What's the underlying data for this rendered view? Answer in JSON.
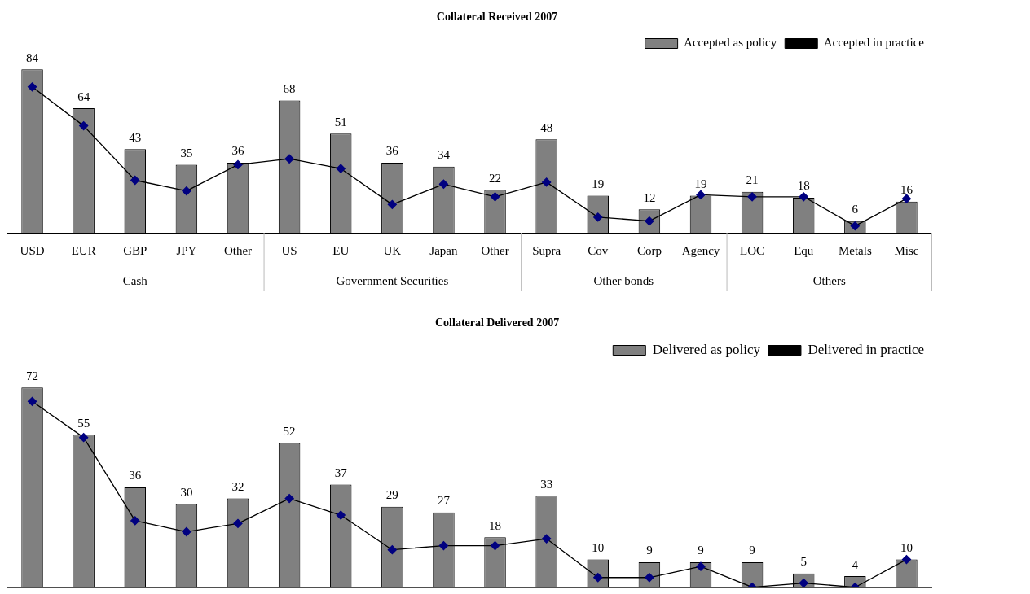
{
  "chart_data": [
    {
      "type": "bar",
      "title": "Collateral Received 2007",
      "categories": [
        "USD",
        "EUR",
        "GBP",
        "JPY",
        "Other",
        "US",
        "EU",
        "UK",
        "Japan",
        "Other",
        "Supra",
        "Cov",
        "Corp",
        "Agency",
        "LOC",
        "Equ",
        "Metals",
        "Misc"
      ],
      "series": [
        {
          "name": "Accepted as policy",
          "color": "#808080",
          "values": [
            84,
            64,
            43,
            35,
            36,
            68,
            51,
            36,
            34,
            22,
            48,
            19,
            12,
            19,
            21,
            18,
            6,
            16
          ],
          "value_labels": [
            "84",
            "64",
            "43",
            "35",
            "36",
            "68",
            "51",
            "36",
            "34",
            "22",
            "48",
            "19",
            "12",
            "19",
            "21",
            "18",
            "6",
            "16"
          ]
        },
        {
          "name": "Accepted in practice",
          "type": "line",
          "color": "#000080",
          "values": [
            75,
            55,
            27,
            21.5,
            35,
            38,
            33,
            14.5,
            25,
            18.5,
            26,
            8,
            6,
            19.5,
            18.5,
            18.5,
            3.5,
            17.5
          ]
        }
      ],
      "annotations": [
        "Cash",
        "Government Securities",
        "Other bonds",
        "Others"
      ],
      "legend": "top right",
      "marker": "diamond",
      "grid": false,
      "tick_labels": "x"
    },
    {
      "type": "bar",
      "title": "Collateral Delivered 2007",
      "categories": [
        null,
        null,
        null,
        null,
        null,
        null,
        null,
        null,
        null,
        null,
        null,
        null,
        null,
        null,
        null,
        null,
        null,
        null
      ],
      "series": [
        {
          "name": "Delivered as policy",
          "color": "#808080",
          "values": [
            72,
            55,
            36,
            30,
            32,
            52,
            37,
            29,
            27,
            18,
            33,
            10,
            9,
            9,
            9,
            5,
            4,
            10
          ],
          "value_labels": [
            "72",
            "55",
            "36",
            "30",
            "32",
            "52",
            "37",
            "29",
            "27",
            "18",
            "33",
            "10",
            "9",
            "9",
            "9",
            "5",
            "4",
            "10"
          ]
        },
        {
          "name": "Delivered in practice",
          "type": "line",
          "color": "#000080",
          "values": [
            67,
            54,
            24,
            20,
            23,
            32,
            26,
            13.5,
            15,
            15,
            17.5,
            3.5,
            3.5,
            7.5,
            0,
            1.5,
            0,
            10
          ]
        }
      ],
      "legend": "top right",
      "marker": "diamond",
      "grid": false,
      "tick_labels": false
    }
  ]
}
